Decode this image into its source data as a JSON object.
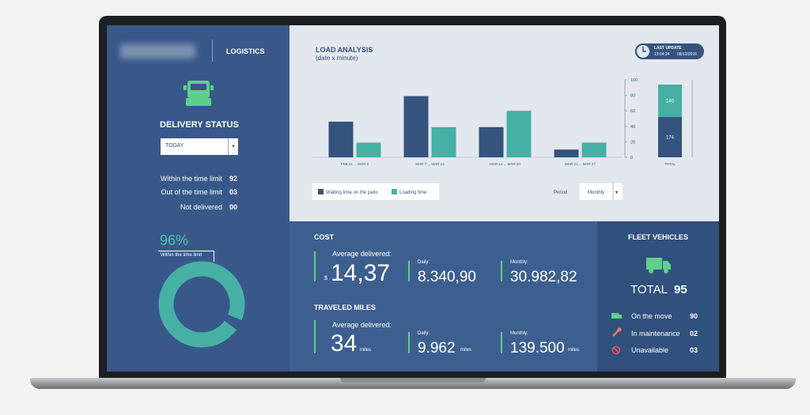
{
  "sidebar": {
    "brand": "LOGISTICS",
    "title": "DELIVERY STATUS",
    "filter": "TODAY",
    "status": [
      {
        "label": "Within the time limit",
        "value": "92"
      },
      {
        "label": "Out of the time limit",
        "value": "03"
      },
      {
        "label": "Not delivered",
        "value": "00"
      }
    ],
    "percent": {
      "value": 96,
      "label": "96%"
    },
    "percent_caption": "Within the time limit"
  },
  "chart_data": {
    "type": "bar",
    "title": "LOAD ANALYSIS",
    "subtitle": "(date x minute)",
    "categories": [
      "FEB 21 ... MAR 6",
      "MAR 7 ... MAR 13",
      "MAR 14 ... MAR 20",
      "MAR 21 ... MAR 27"
    ],
    "series": [
      {
        "name": "Waiting time on the patio",
        "color": "#34537f",
        "values": [
          46,
          79,
          39,
          10
        ]
      },
      {
        "name": "Loading time",
        "color": "#47b0a5",
        "values": [
          19,
          39,
          60,
          19
        ]
      }
    ],
    "ylim": [
      0,
      100
    ],
    "yticks": [
      0,
      20,
      40,
      60,
      80,
      100
    ],
    "total": {
      "label": "TOTAL",
      "values": [
        174,
        140
      ]
    },
    "last_update": {
      "label": "LAST UPDATE",
      "time": "13:04:24",
      "date": "08/12/2016"
    },
    "period": {
      "label": "Period",
      "value": "Monthly"
    }
  },
  "cost": {
    "title": "COST",
    "average_label": "Average delivered:",
    "currency": "$",
    "average": "14,37",
    "daily_label": "Daily:",
    "daily": "8.340,90",
    "monthly_label": "Monthly:",
    "monthly": "30.982,82"
  },
  "miles": {
    "title": "TRAVELED MILES",
    "average_label": "Average delivered:",
    "average": "34",
    "unit": "miles",
    "daily_label": "Daily:",
    "daily": "9.962",
    "monthly_label": "Monthly:",
    "monthly": "139.500"
  },
  "fleet": {
    "title": "FLEET VEHICLES",
    "total_label": "TOTAL",
    "total": "95",
    "items": [
      {
        "label": "On the move",
        "value": "90"
      },
      {
        "label": "In maintenance",
        "value": "02"
      },
      {
        "label": "Unavailable",
        "value": "03"
      }
    ]
  }
}
